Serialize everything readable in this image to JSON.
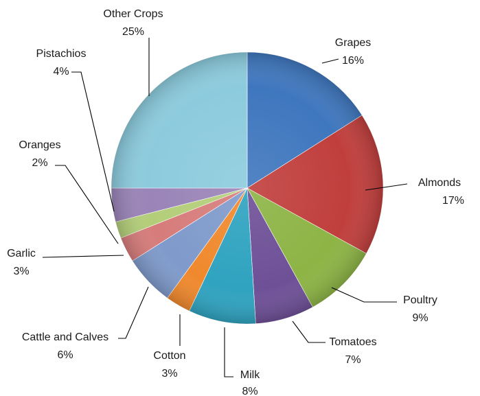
{
  "chart_data": {
    "type": "pie",
    "title": "",
    "legend": "none",
    "start_angle_deg": 0,
    "direction": "clockwise",
    "slices": [
      {
        "label": "Grapes",
        "percent_label": "16%",
        "value": 16,
        "color": "#3F77BE"
      },
      {
        "label": "Almonds",
        "percent_label": "17%",
        "value": 17,
        "color": "#C03F3D"
      },
      {
        "label": "Poultry",
        "percent_label": "9%",
        "value": 9,
        "color": "#8DB445"
      },
      {
        "label": "Tomatoes",
        "percent_label": "7%",
        "value": 7,
        "color": "#6E5097"
      },
      {
        "label": "Milk",
        "percent_label": "8%",
        "value": 8,
        "color": "#2FA3C0"
      },
      {
        "label": "Cotton",
        "percent_label": "3%",
        "value": 3,
        "color": "#F0892D"
      },
      {
        "label": "Cattle and Calves",
        "percent_label": "6%",
        "value": 6,
        "color": "#7F9ACB"
      },
      {
        "label": "Garlic",
        "percent_label": "3%",
        "value": 3,
        "color": "#D67C7B"
      },
      {
        "label": "Oranges",
        "percent_label": "2%",
        "value": 2,
        "color": "#B3CE79"
      },
      {
        "label": "Pistachios",
        "percent_label": "4%",
        "value": 4,
        "color": "#9A84B8"
      },
      {
        "label": "Other Crops",
        "percent_label": "25%",
        "value": 25,
        "color": "#8CCBDD"
      }
    ]
  }
}
